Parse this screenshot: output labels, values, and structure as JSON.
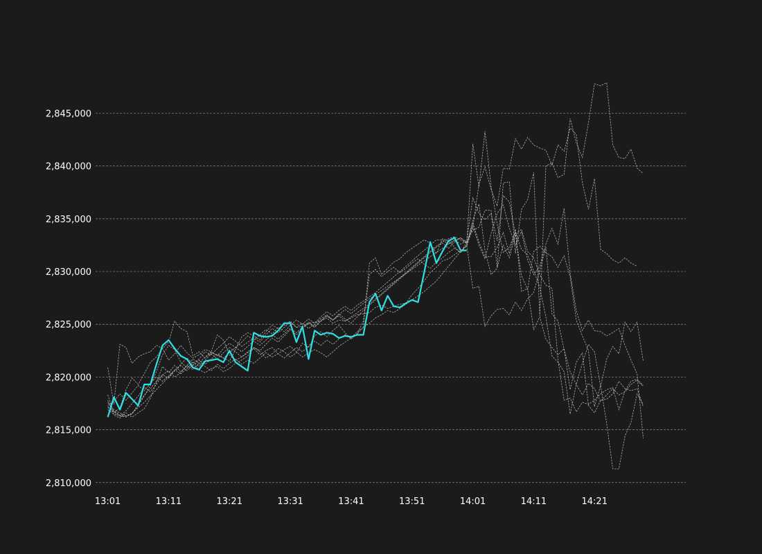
{
  "chart_data": {
    "type": "line",
    "title": "",
    "xlabel": "",
    "ylabel": "",
    "grid": "horizontal dashed",
    "legend": "none",
    "ylim": [
      2809000,
      2849500
    ],
    "y_ticks": [
      2810000,
      2815000,
      2820000,
      2825000,
      2830000,
      2835000,
      2840000,
      2845000
    ],
    "y_tick_labels": [
      "2,810,000",
      "2,815,000",
      "2,820,000",
      "2,825,000",
      "2,830,000",
      "2,835,000",
      "2,840,000",
      "2,845,000"
    ],
    "x_range_minutes": [
      -2,
      95
    ],
    "x_ticks": [
      0,
      10,
      20,
      30,
      40,
      50,
      60,
      70,
      80
    ],
    "x_tick_labels": [
      "13:01",
      "13:11",
      "13:21",
      "13:31",
      "13:41",
      "13:51",
      "14:01",
      "14:11",
      "14:21"
    ],
    "colors": {
      "background": "#1b1b1b",
      "highlight": "#2de0e6",
      "paths": "#c8c8c8",
      "grid": "#8a8a8a",
      "text": "#ffffff"
    },
    "highlight_series": {
      "x_start_minute": 0,
      "values": [
        2816200,
        2818100,
        2816900,
        2818500,
        2817900,
        2817300,
        2819300,
        2819300,
        2821200,
        2823000,
        2823500,
        2822700,
        2822000,
        2821700,
        2820900,
        2820700,
        2821500,
        2821600,
        2821700,
        2821400,
        2822500,
        2821400,
        2821000,
        2820600,
        2824200,
        2823900,
        2823800,
        2823900,
        2824400,
        2825100,
        2825100,
        2823300,
        2824800,
        2821700,
        2824400,
        2824000,
        2824200,
        2824100,
        2823700,
        2823900,
        2823800,
        2824000,
        2824000,
        2827100,
        2827900,
        2826300,
        2827700,
        2826700,
        2826600,
        2827000,
        2827300,
        2827100,
        2829900,
        2832800,
        2830800,
        2831900,
        2832900,
        2833200,
        2832000,
        2832000
      ]
    },
    "paths": [
      {
        "values": [
          2820900,
          2817400,
          2823100,
          2822800,
          2821300,
          2821900,
          2822200,
          2822400,
          2823000,
          2822700,
          2823300,
          2825300,
          2824600,
          2824300,
          2822000,
          2822400,
          2821800,
          2822300,
          2822100,
          2821800,
          2821500,
          2822600,
          2823800,
          2824200,
          2823900,
          2823500,
          2824300,
          2824900,
          2824600,
          2824900,
          2825300,
          2824700,
          2824800,
          2825100,
          2825200,
          2825300,
          2825600,
          2825100,
          2825400,
          2825300,
          2825600,
          2825900,
          2826000,
          2826100,
          2826600,
          2826800,
          2826500,
          2826700,
          2826900,
          2827000,
          2827800,
          2828400,
          2829100,
          2829900,
          2830400,
          2831000,
          2831200,
          2831600,
          2832000,
          2832400,
          2834200,
          2838300,
          2839900,
          2837800,
          2836200,
          2839800,
          2839700,
          2842600,
          2841600,
          2842700,
          2842000,
          2841700,
          2841500,
          2840100,
          2842000,
          2841400,
          2843600,
          2843000,
          2838400,
          2835900,
          2838800,
          2832100,
          2831700,
          2831100,
          2830800,
          2831300,
          2830800,
          2830500
        ]
      },
      {
        "values": [
          2817200,
          2816800,
          2816400,
          2816300,
          2816500,
          2817300,
          2818200,
          2819200,
          2820500,
          2822100,
          2823000,
          2822600,
          2821400,
          2820900,
          2821200,
          2820700,
          2820400,
          2820800,
          2821000,
          2820500,
          2820800,
          2821300,
          2821600,
          2822000,
          2822800,
          2822400,
          2821800,
          2822200,
          2822700,
          2822400,
          2821900,
          2822300,
          2823200,
          2822800,
          2823900,
          2824300,
          2823800,
          2824400,
          2824900,
          2824200,
          2823600,
          2824100,
          2824700,
          2830800,
          2831300,
          2829700,
          2830300,
          2830900,
          2831200,
          2831800,
          2832200,
          2832600,
          2833000,
          2832700,
          2831700,
          2833100,
          2832900,
          2832300,
          2831800,
          2832500,
          2834900,
          2836400,
          2832000,
          2829700,
          2830300,
          2838400,
          2838500,
          2831700,
          2835900,
          2836800,
          2839400,
          2825800,
          2840000,
          2840300,
          2838900,
          2839200,
          2844500,
          2842200,
          2840800,
          2844100,
          2847800,
          2847600,
          2847900,
          2842000,
          2840800,
          2840700,
          2841600,
          2839800,
          2839300
        ]
      },
      {
        "values": [
          2818300,
          2816600,
          2817100,
          2818800,
          2819900,
          2819300,
          2820300,
          2821400,
          2821900,
          2822700,
          2821600,
          2822200,
          2823000,
          2822300,
          2821800,
          2822100,
          2822600,
          2822400,
          2824000,
          2823500,
          2822100,
          2821600,
          2821900,
          2822300,
          2822700,
          2822100,
          2822500,
          2822800,
          2822200,
          2822600,
          2822900,
          2822400,
          2821900,
          2822300,
          2822600,
          2822300,
          2821900,
          2822400,
          2822900,
          2823300,
          2823700,
          2824100,
          2825300,
          2829700,
          2830200,
          2829500,
          2830000,
          2830400,
          2829900,
          2830300,
          2830800,
          2831200,
          2830700,
          2830300,
          2830900,
          2831300,
          2831800,
          2832200,
          2831800,
          2832800,
          2842100,
          2838000,
          2843300,
          2838100,
          2834500,
          2831800,
          2832300,
          2833700,
          2832100,
          2831600,
          2830100,
          2828500,
          2825700,
          2822000,
          2821400,
          2820500,
          2816500,
          2819300,
          2821300,
          2823100,
          2822400,
          2819100,
          2821700,
          2822900,
          2822200,
          2825200,
          2824300,
          2825200,
          2821500
        ]
      },
      {
        "values": [
          2817100,
          2816700,
          2816300,
          2816800,
          2817500,
          2818200,
          2819000,
          2818600,
          2819300,
          2820200,
          2820600,
          2820000,
          2820400,
          2821100,
          2820700,
          2821300,
          2821000,
          2820600,
          2821200,
          2820800,
          2821300,
          2821700,
          2821200,
          2821600,
          2821300,
          2821800,
          2822300,
          2821900,
          2822200,
          2821800,
          2822300,
          2822800,
          2822400,
          2822900,
          2823400,
          2823000,
          2823500,
          2823100,
          2823600,
          2824000,
          2823700,
          2824300,
          2824700,
          2825100,
          2825600,
          2825900,
          2826300,
          2826100,
          2826500,
          2826900,
          2827300,
          2827700,
          2828100,
          2828600,
          2829100,
          2829800,
          2830500,
          2831200,
          2831900,
          2832500,
          2828400,
          2828600,
          2824800,
          2825800,
          2826400,
          2826500,
          2825900,
          2827100,
          2826300,
          2827400,
          2828000,
          2830100,
          2832300,
          2826000,
          2825300,
          2822600,
          2820500,
          2819300,
          2818300,
          2819400,
          2818900,
          2817700,
          2818300,
          2818900,
          2818300,
          2818600,
          2819300,
          2819700,
          2819100
        ]
      },
      {
        "values": [
          2817600,
          2816900,
          2816600,
          2816300,
          2816500,
          2817400,
          2818300,
          2818900,
          2819600,
          2820200,
          2819900,
          2820600,
          2821200,
          2821800,
          2821300,
          2821700,
          2822400,
          2822100,
          2822700,
          2823200,
          2823800,
          2823400,
          2822900,
          2823300,
          2823700,
          2823300,
          2824000,
          2824600,
          2824200,
          2824700,
          2825200,
          2824700,
          2825100,
          2824600,
          2825000,
          2825500,
          2825900,
          2825400,
          2825800,
          2825300,
          2825700,
          2826100,
          2826500,
          2826900,
          2827400,
          2827900,
          2828400,
          2828900,
          2829400,
          2829900,
          2830400,
          2830900,
          2831400,
          2831900,
          2832400,
          2832800,
          2833100,
          2833300,
          2833000,
          2832700,
          2834300,
          2832500,
          2831200,
          2833600,
          2835500,
          2836300,
          2834100,
          2832500,
          2833800,
          2831100,
          2829700,
          2830500,
          2832600,
          2834100,
          2832600,
          2836000,
          2829800,
          2826300,
          2824400,
          2825400,
          2824400,
          2824300,
          2823900,
          2824200,
          2824600,
          2823000,
          2821600,
          2820300,
          2814200
        ]
      },
      {
        "values": [
          2817300,
          2817700,
          2818400,
          2817800,
          2818500,
          2819200,
          2818700,
          2819400,
          2820000,
          2819600,
          2820100,
          2820700,
          2820300,
          2820800,
          2821400,
          2821000,
          2821600,
          2822200,
          2821700,
          2822300,
          2822800,
          2822400,
          2821900,
          2822400,
          2822800,
          2822500,
          2823100,
          2823700,
          2823300,
          2823900,
          2824500,
          2824000,
          2824600,
          2825100,
          2824700,
          2825300,
          2825800,
          2825400,
          2826000,
          2825500,
          2825100,
          2825700,
          2826300,
          2826800,
          2827300,
          2827800,
          2828300,
          2828800,
          2829300,
          2829800,
          2830300,
          2830800,
          2831300,
          2831800,
          2832300,
          2832700,
          2832200,
          2832800,
          2833200,
          2832600,
          2834600,
          2832800,
          2831400,
          2831400,
          2832300,
          2833700,
          2831700,
          2834000,
          2828100,
          2828400,
          2824500,
          2825700,
          2823600,
          2822800,
          2822100,
          2822700,
          2818800,
          2821400,
          2822300,
          2817300,
          2816600,
          2817800,
          2817900,
          2818400,
          2819600,
          2818900,
          2818700,
          2818900,
          2817200
        ]
      },
      {
        "values": [
          2817800,
          2816400,
          2816100,
          2816600,
          2816200,
          2816600,
          2817000,
          2818000,
          2819500,
          2821000,
          2820400,
          2821100,
          2820500,
          2821100,
          2821700,
          2821300,
          2821900,
          2822400,
          2822000,
          2822700,
          2823200,
          2822800,
          2823300,
          2823900,
          2823500,
          2824000,
          2824500,
          2824100,
          2824700,
          2824300,
          2824900,
          2825400,
          2825000,
          2825500,
          2825100,
          2825700,
          2826200,
          2825800,
          2826300,
          2826700,
          2826300,
          2826800,
          2827200,
          2827600,
          2828000,
          2828500,
          2829000,
          2829500,
          2830000,
          2830500,
          2831000,
          2831500,
          2832000,
          2832500,
          2833000,
          2833000,
          2832600,
          2832900,
          2833200,
          2832800,
          2833900,
          2834200,
          2835800,
          2835800,
          2830400,
          2832500,
          2831300,
          2833500,
          2834000,
          2831900,
          2831300,
          2829700,
          2828700,
          2828400,
          2821600,
          2817800,
          2818000,
          2816700,
          2817600,
          2817400,
          2817800,
          2818400,
          2818800,
          2819000,
          2816900,
          2818700,
          2819600,
          2819800,
          2819200
        ]
      },
      {
        "values": [
          2816900,
          2816500,
          2816300,
          2816200,
          2816600,
          2817100,
          2817600,
          2818200,
          2818800,
          2819400,
          2820000,
          2820600,
          2821100,
          2820600,
          2821100,
          2821600,
          2821200,
          2821700,
          2822200,
          2821800,
          2822300,
          2822800,
          2822400,
          2822900,
          2823400,
          2823000,
          2823500,
          2824000,
          2823600,
          2824100,
          2824600,
          2824200,
          2824700,
          2825200,
          2824800,
          2825300,
          2825800,
          2825400,
          2825900,
          2826400,
          2826000,
          2826500,
          2827000,
          2827400,
          2827800,
          2828200,
          2828600,
          2829000,
          2829400,
          2829800,
          2830200,
          2830600,
          2831000,
          2831400,
          2831800,
          2832200,
          2832600,
          2833000,
          2832600,
          2832900,
          2837000,
          2835500,
          2834900,
          2835500,
          2832900,
          2837200,
          2836600,
          2833500,
          2829600,
          2828300,
          2831900,
          2832400,
          2831800,
          2831400,
          2830400,
          2831500,
          2829500,
          2825400,
          2823900,
          2822500,
          2817200,
          2819200,
          2815600,
          2811300,
          2811300,
          2814400,
          2815700,
          2818400,
          2817400
        ]
      }
    ]
  }
}
